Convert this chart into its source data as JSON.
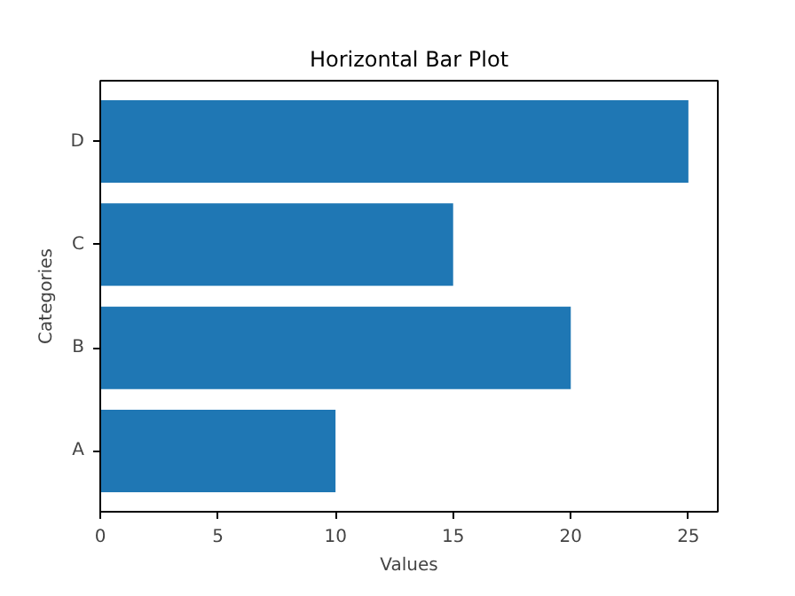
{
  "chart_data": {
    "type": "bar",
    "orientation": "horizontal",
    "title": "Horizontal Bar Plot",
    "xlabel": "Values",
    "ylabel": "Categories",
    "categories": [
      "D",
      "C",
      "B",
      "A"
    ],
    "values": [
      25,
      15,
      20,
      10
    ],
    "color": "#1f77b4",
    "xlim": [
      0,
      26.25
    ],
    "xticks": [
      0,
      5,
      10,
      15,
      20,
      25
    ],
    "grid": false
  }
}
